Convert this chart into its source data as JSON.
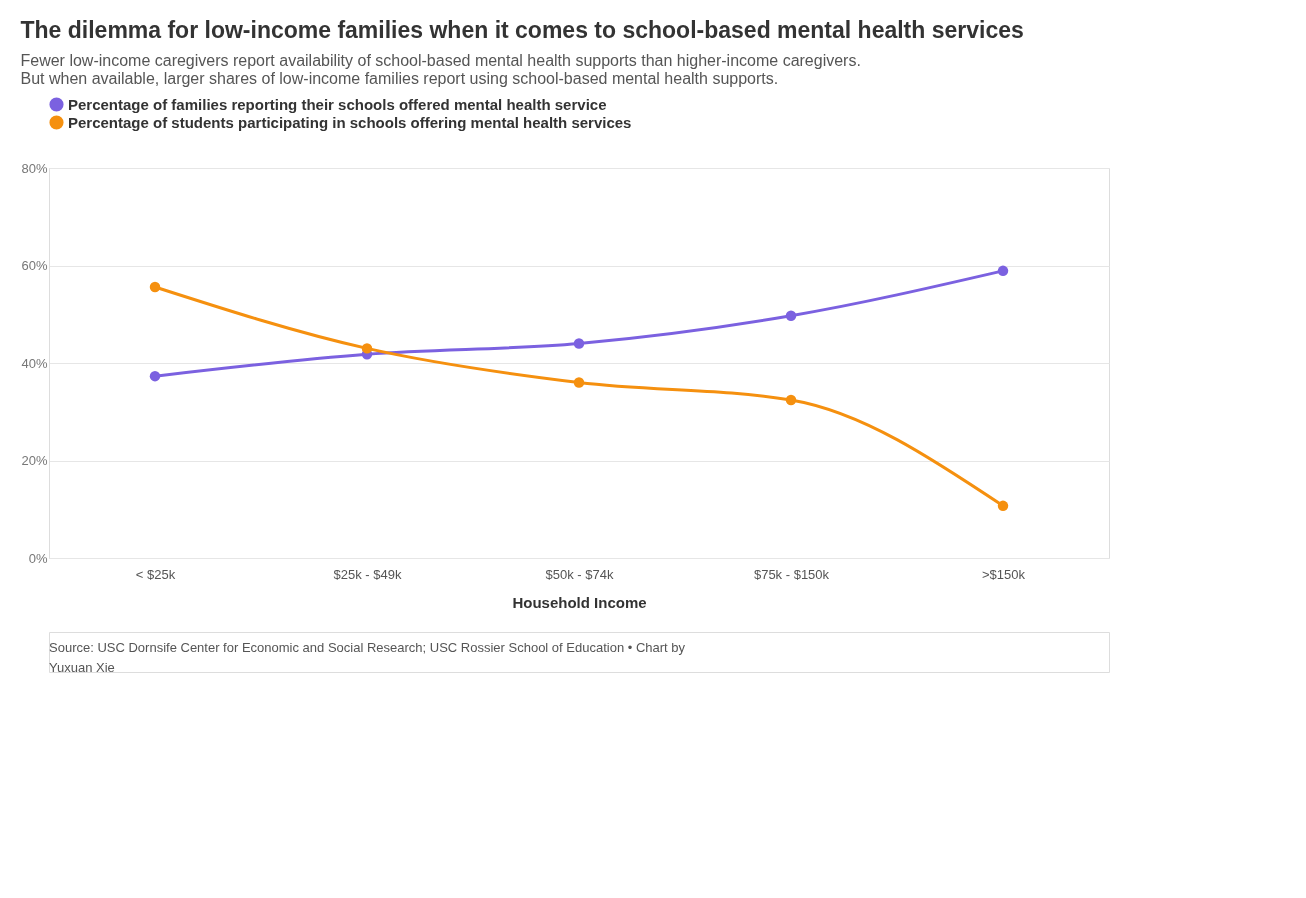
{
  "chart_data": {
    "type": "line",
    "title": "The dilemma for low-income families when it comes to school-based mental health services",
    "subtitle": "Fewer low-income caregivers report availability of school-based mental health supports than higher-income caregivers. But when available, larger shares of low-income families report using school-based mental health supports.",
    "xlabel": "Household Income",
    "categories": [
      "< $25k",
      "$25k - $49k",
      "$50k - $74k",
      "$75k - $150k",
      ">$150k"
    ],
    "series": [
      {
        "name": "Percentage of families reporting their schools offered mental health service",
        "color": "#7b61e0",
        "values": [
          37.3,
          41.8,
          44.0,
          49.7,
          58.9
        ]
      },
      {
        "name": "Percentage of students participating in schools offering mental health services",
        "color": "#f5900f",
        "values": [
          55.6,
          43.0,
          36.0,
          32.4,
          10.7
        ]
      }
    ],
    "ylim": [
      0,
      80
    ],
    "yticks": [
      {
        "value": 0,
        "label": "0%"
      },
      {
        "value": 20,
        "label": "20%"
      },
      {
        "value": 40,
        "label": "40%"
      },
      {
        "value": 60,
        "label": "60%"
      },
      {
        "value": 80,
        "label": "80%"
      }
    ],
    "grid": "y",
    "legend": "top left",
    "marker": "circle",
    "line_style": "solid",
    "annotations": [
      "Source: USC Dornsife Center for Economic and Social Research; USC Rossier School of Education • Chart by Yuxuan Xie"
    ]
  }
}
